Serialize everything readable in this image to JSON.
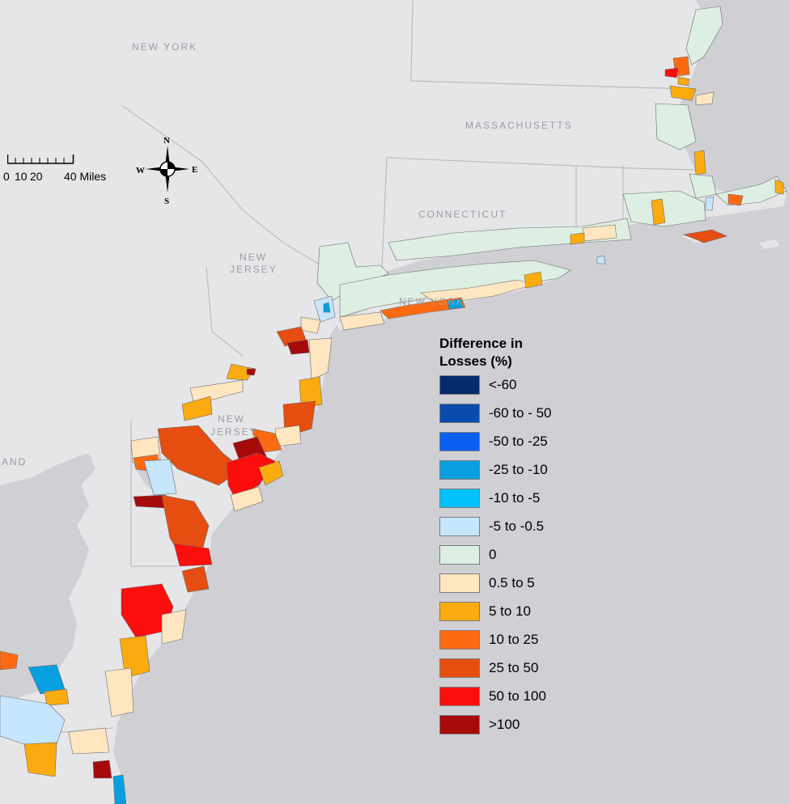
{
  "map": {
    "state_labels": {
      "new_york": "NEW YORK",
      "massachusetts": "MASSACHUSETTS",
      "connecticut": "CONNECTICUT",
      "new_jersey_line1": "NEW",
      "new_jersey_line2": "JERSEY",
      "new_york_partial": "NEW YORK",
      "new_jersey_2_line1": "NEW",
      "new_jersey_2_line2": "JERSEY",
      "maryland_partial": "AND"
    },
    "colors": {
      "land": "#e6e6e8",
      "water": "#cfcfd4",
      "border": "#bcbcc0"
    }
  },
  "scale_bar": {
    "labels": [
      "0",
      "10",
      "20",
      "40 Miles"
    ]
  },
  "compass": {
    "north": "N",
    "south": "S",
    "east": "E",
    "west": "W"
  },
  "legend": {
    "title": "Difference in\nLosses (%)",
    "items": [
      {
        "label": "<-60",
        "color": "#072a6c"
      },
      {
        "label": "-60 to - 50",
        "color": "#0a4cad"
      },
      {
        "label": "-50 to -25",
        "color": "#0a5ff0"
      },
      {
        "label": "-25 to -10",
        "color": "#079fe0"
      },
      {
        "label": "-10 to -5",
        "color": "#00c2fa"
      },
      {
        "label": "-5 to -0.5",
        "color": "#c5e6fb"
      },
      {
        "label": "0",
        "color": "#dcefe2"
      },
      {
        "label": "0.5 to 5",
        "color": "#fde6c0"
      },
      {
        "label": "5 to 10",
        "color": "#fbab0f"
      },
      {
        "label": "10 to 25",
        "color": "#fb6a13"
      },
      {
        "label": "25 to 50",
        "color": "#e54e10"
      },
      {
        "label": "50 to 100",
        "color": "#fb0e0c"
      },
      {
        "label": ">100",
        "color": "#a60a0a"
      }
    ]
  }
}
